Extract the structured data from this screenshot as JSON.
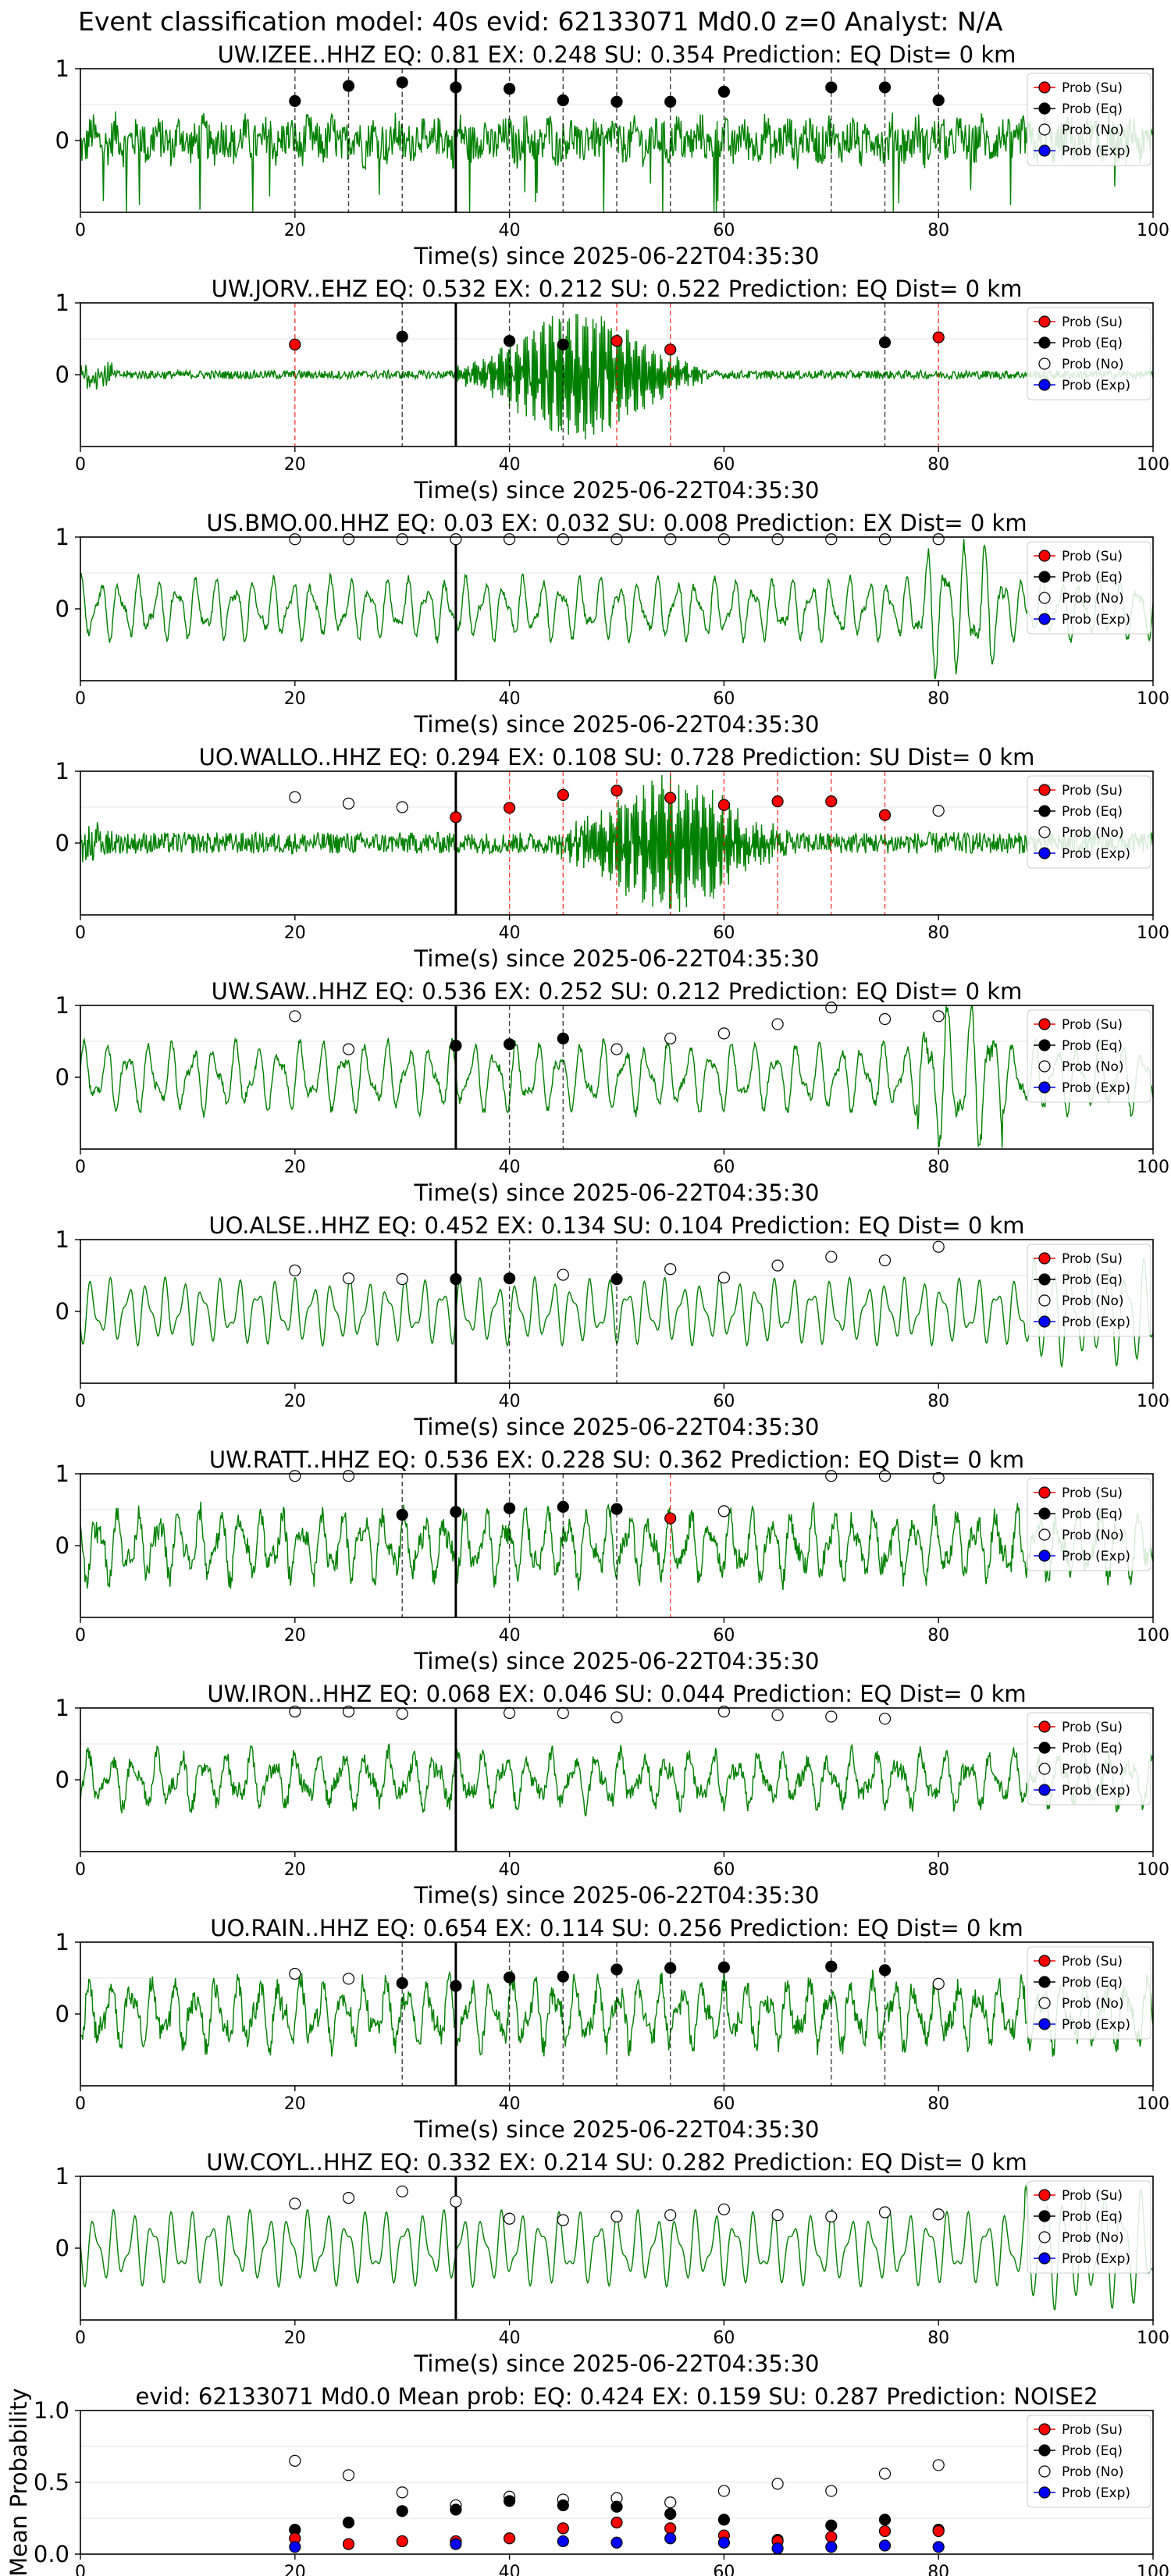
{
  "figure": {
    "suptitle": "Event classification model: 40s evid: 62133071 Md0.0 z=0 Analyst: N/A"
  },
  "style": {
    "waveform": "#008000",
    "prob_su": "#ff0000",
    "prob_eq": "#000000",
    "prob_no": "#ffffff",
    "prob_exp": "#0000ff",
    "pick_line": "#000000"
  },
  "legend": {
    "placement": "top-right",
    "entries": [
      "Prob (Su)",
      "Prob (Eq)",
      "Prob (No)",
      "Prob (Exp)"
    ]
  },
  "chart_data": [
    {
      "type": "line",
      "title": "UW.IZEE..HHZ   EQ: 0.81  EX: 0.248  SU: 0.354   Prediction: EQ    Dist= 0 km",
      "xlabel": "Time(s) since 2025-06-22T04:35:30",
      "xlim": [
        0,
        100
      ],
      "ylim": [
        -1,
        1
      ],
      "xticks": [
        0,
        20,
        40,
        60,
        80,
        100
      ],
      "yticks": [
        0,
        1
      ],
      "pick_time": 35,
      "waveform": {
        "style": "noisy",
        "amplitude": 0.35,
        "burst_start": null,
        "burst_end": null
      },
      "windows": [
        {
          "t": 20,
          "class": "EQ",
          "p": 0.55
        },
        {
          "t": 25,
          "class": "EQ",
          "p": 0.76
        },
        {
          "t": 30,
          "class": "EQ",
          "p": 0.81
        },
        {
          "t": 35,
          "class": "EQ",
          "p": 0.74
        },
        {
          "t": 40,
          "class": "EQ",
          "p": 0.72
        },
        {
          "t": 45,
          "class": "EQ",
          "p": 0.56
        },
        {
          "t": 50,
          "class": "EQ",
          "p": 0.54
        },
        {
          "t": 55,
          "class": "EQ",
          "p": 0.54
        },
        {
          "t": 60,
          "class": "EQ",
          "p": 0.68
        },
        {
          "t": 70,
          "class": "EQ",
          "p": 0.74
        },
        {
          "t": 75,
          "class": "EQ",
          "p": 0.74
        },
        {
          "t": 80,
          "class": "EQ",
          "p": 0.56
        }
      ]
    },
    {
      "type": "line",
      "title": "UW.JORV..EHZ   EQ: 0.532  EX: 0.212  SU: 0.522   Prediction: EQ    Dist= 0 km",
      "xlabel": "Time(s) since 2025-06-22T04:35:30",
      "xlim": [
        0,
        100
      ],
      "ylim": [
        -1,
        1
      ],
      "xticks": [
        0,
        20,
        40,
        60,
        80,
        100
      ],
      "yticks": [
        0,
        1
      ],
      "pick_time": 35,
      "waveform": {
        "style": "burst",
        "amplitude": 0.08,
        "burst_start": 35,
        "burst_end": 58
      },
      "windows": [
        {
          "t": 20,
          "class": "SU",
          "p": 0.42
        },
        {
          "t": 30,
          "class": "EQ",
          "p": 0.53
        },
        {
          "t": 40,
          "class": "EQ",
          "p": 0.47
        },
        {
          "t": 45,
          "class": "EQ",
          "p": 0.42
        },
        {
          "t": 50,
          "class": "SU",
          "p": 0.47
        },
        {
          "t": 55,
          "class": "SU",
          "p": 0.35
        },
        {
          "t": 75,
          "class": "EQ",
          "p": 0.45
        },
        {
          "t": 80,
          "class": "SU",
          "p": 0.52
        }
      ]
    },
    {
      "type": "line",
      "title": "US.BMO.00.HHZ   EQ: 0.03  EX: 0.032  SU: 0.008   Prediction: EX    Dist= 0 km",
      "xlabel": "Time(s) since 2025-06-22T04:35:30",
      "xlim": [
        0,
        100
      ],
      "ylim": [
        -1,
        1
      ],
      "xticks": [
        0,
        20,
        40,
        60,
        80,
        100
      ],
      "yticks": [
        0,
        1
      ],
      "pick_time": 35,
      "waveform": {
        "style": "smooth",
        "amplitude": 0.4,
        "burst_start": null,
        "burst_end": null
      },
      "windows": [
        {
          "t": 20,
          "class": "NO",
          "p": 0.97
        },
        {
          "t": 25,
          "class": "NO",
          "p": 0.97
        },
        {
          "t": 30,
          "class": "NO",
          "p": 0.97
        },
        {
          "t": 35,
          "class": "NO",
          "p": 0.97
        },
        {
          "t": 40,
          "class": "NO",
          "p": 0.97
        },
        {
          "t": 45,
          "class": "NO",
          "p": 0.97
        },
        {
          "t": 50,
          "class": "NO",
          "p": 0.97
        },
        {
          "t": 55,
          "class": "NO",
          "p": 0.97
        },
        {
          "t": 60,
          "class": "NO",
          "p": 0.97
        },
        {
          "t": 65,
          "class": "NO",
          "p": 0.97
        },
        {
          "t": 70,
          "class": "NO",
          "p": 0.97
        },
        {
          "t": 75,
          "class": "NO",
          "p": 0.97
        },
        {
          "t": 80,
          "class": "NO",
          "p": 0.97
        }
      ]
    },
    {
      "type": "line",
      "title": "UO.WALLO..HHZ   EQ: 0.294  EX: 0.108  SU: 0.728   Prediction: SU    Dist= 0 km",
      "xlabel": "Time(s) since 2025-06-22T04:35:30",
      "xlim": [
        0,
        100
      ],
      "ylim": [
        -1,
        1
      ],
      "xticks": [
        0,
        20,
        40,
        60,
        80,
        100
      ],
      "yticks": [
        0,
        1
      ],
      "pick_time": 35,
      "waveform": {
        "style": "burst",
        "amplitude": 0.2,
        "burst_start": 44,
        "burst_end": 66
      },
      "windows": [
        {
          "t": 20,
          "class": "NO",
          "p": 0.64
        },
        {
          "t": 25,
          "class": "NO",
          "p": 0.55
        },
        {
          "t": 30,
          "class": "NO",
          "p": 0.5
        },
        {
          "t": 35,
          "class": "SU",
          "p": 0.36
        },
        {
          "t": 40,
          "class": "SU",
          "p": 0.49
        },
        {
          "t": 45,
          "class": "SU",
          "p": 0.67
        },
        {
          "t": 50,
          "class": "SU",
          "p": 0.73
        },
        {
          "t": 55,
          "class": "SU",
          "p": 0.63
        },
        {
          "t": 60,
          "class": "SU",
          "p": 0.53
        },
        {
          "t": 65,
          "class": "SU",
          "p": 0.58
        },
        {
          "t": 70,
          "class": "SU",
          "p": 0.58
        },
        {
          "t": 75,
          "class": "SU",
          "p": 0.39
        },
        {
          "t": 80,
          "class": "NO",
          "p": 0.45
        }
      ]
    },
    {
      "type": "line",
      "title": "UW.SAW..HHZ   EQ: 0.536  EX: 0.252  SU: 0.212   Prediction: EQ    Dist= 0 km",
      "xlabel": "Time(s) since 2025-06-22T04:35:30",
      "xlim": [
        0,
        100
      ],
      "ylim": [
        -1,
        1
      ],
      "xticks": [
        0,
        20,
        40,
        60,
        80,
        100
      ],
      "yticks": [
        0,
        1
      ],
      "pick_time": 35,
      "waveform": {
        "style": "smooth",
        "amplitude": 0.45,
        "burst_start": null,
        "burst_end": null
      },
      "windows": [
        {
          "t": 20,
          "class": "NO",
          "p": 0.85
        },
        {
          "t": 25,
          "class": "NO",
          "p": 0.39
        },
        {
          "t": 35,
          "class": "EQ",
          "p": 0.44
        },
        {
          "t": 40,
          "class": "EQ",
          "p": 0.46
        },
        {
          "t": 45,
          "class": "EQ",
          "p": 0.54
        },
        {
          "t": 50,
          "class": "NO",
          "p": 0.39
        },
        {
          "t": 55,
          "class": "NO",
          "p": 0.54
        },
        {
          "t": 60,
          "class": "NO",
          "p": 0.61
        },
        {
          "t": 65,
          "class": "NO",
          "p": 0.74
        },
        {
          "t": 70,
          "class": "NO",
          "p": 0.97
        },
        {
          "t": 75,
          "class": "NO",
          "p": 0.81
        },
        {
          "t": 80,
          "class": "NO",
          "p": 0.85
        }
      ]
    },
    {
      "type": "line",
      "title": "UO.ALSE..HHZ   EQ: 0.452  EX: 0.134  SU: 0.104   Prediction: EQ    Dist= 0 km",
      "xlabel": "Time(s) since 2025-06-22T04:35:30",
      "xlim": [
        0,
        100
      ],
      "ylim": [
        -1,
        1
      ],
      "xticks": [
        0,
        20,
        40,
        60,
        80,
        100
      ],
      "yticks": [
        0,
        1
      ],
      "pick_time": 35,
      "waveform": {
        "style": "clean",
        "amplitude": 0.4,
        "burst_start": null,
        "burst_end": null
      },
      "windows": [
        {
          "t": 20,
          "class": "NO",
          "p": 0.57
        },
        {
          "t": 25,
          "class": "NO",
          "p": 0.46
        },
        {
          "t": 30,
          "class": "NO",
          "p": 0.45
        },
        {
          "t": 35,
          "class": "EQ",
          "p": 0.45
        },
        {
          "t": 40,
          "class": "EQ",
          "p": 0.46
        },
        {
          "t": 45,
          "class": "NO",
          "p": 0.51
        },
        {
          "t": 50,
          "class": "EQ",
          "p": 0.45
        },
        {
          "t": 55,
          "class": "NO",
          "p": 0.59
        },
        {
          "t": 60,
          "class": "NO",
          "p": 0.47
        },
        {
          "t": 65,
          "class": "NO",
          "p": 0.64
        },
        {
          "t": 70,
          "class": "NO",
          "p": 0.76
        },
        {
          "t": 75,
          "class": "NO",
          "p": 0.71
        },
        {
          "t": 80,
          "class": "NO",
          "p": 0.9
        }
      ]
    },
    {
      "type": "line",
      "title": "UW.RATT..HHZ   EQ: 0.536  EX: 0.228  SU: 0.362   Prediction: EQ    Dist= 0 km",
      "xlabel": "Time(s) since 2025-06-22T04:35:30",
      "xlim": [
        0,
        100
      ],
      "ylim": [
        -1,
        1
      ],
      "xticks": [
        0,
        20,
        40,
        60,
        80,
        100
      ],
      "yticks": [
        0,
        1
      ],
      "pick_time": 35,
      "waveform": {
        "style": "noisy-smooth",
        "amplitude": 0.5,
        "burst_start": null,
        "burst_end": null
      },
      "windows": [
        {
          "t": 20,
          "class": "NO",
          "p": 0.97
        },
        {
          "t": 25,
          "class": "NO",
          "p": 0.97
        },
        {
          "t": 30,
          "class": "EQ",
          "p": 0.43
        },
        {
          "t": 35,
          "class": "EQ",
          "p": 0.47
        },
        {
          "t": 40,
          "class": "EQ",
          "p": 0.52
        },
        {
          "t": 45,
          "class": "EQ",
          "p": 0.54
        },
        {
          "t": 50,
          "class": "EQ",
          "p": 0.51
        },
        {
          "t": 55,
          "class": "SU",
          "p": 0.38
        },
        {
          "t": 60,
          "class": "NO",
          "p": 0.48
        },
        {
          "t": 70,
          "class": "NO",
          "p": 0.97
        },
        {
          "t": 75,
          "class": "NO",
          "p": 0.97
        },
        {
          "t": 80,
          "class": "NO",
          "p": 0.94
        }
      ]
    },
    {
      "type": "line",
      "title": "UW.IRON..HHZ   EQ: 0.068  EX: 0.046  SU: 0.044   Prediction: EQ    Dist= 0 km",
      "xlabel": "Time(s) since 2025-06-22T04:35:30",
      "xlim": [
        0,
        100
      ],
      "ylim": [
        -1,
        1
      ],
      "xticks": [
        0,
        20,
        40,
        60,
        80,
        100
      ],
      "yticks": [
        0,
        1
      ],
      "pick_time": 35,
      "waveform": {
        "style": "noisy-smooth",
        "amplitude": 0.4,
        "burst_start": null,
        "burst_end": null
      },
      "windows": [
        {
          "t": 20,
          "class": "NO",
          "p": 0.95
        },
        {
          "t": 25,
          "class": "NO",
          "p": 0.95
        },
        {
          "t": 30,
          "class": "NO",
          "p": 0.92
        },
        {
          "t": 40,
          "class": "NO",
          "p": 0.93
        },
        {
          "t": 45,
          "class": "NO",
          "p": 0.93
        },
        {
          "t": 50,
          "class": "NO",
          "p": 0.87
        },
        {
          "t": 60,
          "class": "NO",
          "p": 0.95
        },
        {
          "t": 65,
          "class": "NO",
          "p": 0.9
        },
        {
          "t": 70,
          "class": "NO",
          "p": 0.88
        },
        {
          "t": 75,
          "class": "NO",
          "p": 0.85
        }
      ]
    },
    {
      "type": "line",
      "title": "UO.RAIN..HHZ   EQ: 0.654  EX: 0.114  SU: 0.256   Prediction: EQ    Dist= 0 km",
      "xlabel": "Time(s) since 2025-06-22T04:35:30",
      "xlim": [
        0,
        100
      ],
      "ylim": [
        -1,
        1
      ],
      "xticks": [
        0,
        20,
        40,
        60,
        80,
        100
      ],
      "yticks": [
        0,
        1
      ],
      "pick_time": 35,
      "waveform": {
        "style": "noisy-smooth",
        "amplitude": 0.5,
        "burst_start": null,
        "burst_end": null
      },
      "windows": [
        {
          "t": 20,
          "class": "NO",
          "p": 0.56
        },
        {
          "t": 25,
          "class": "NO",
          "p": 0.49
        },
        {
          "t": 30,
          "class": "EQ",
          "p": 0.43
        },
        {
          "t": 35,
          "class": "EQ",
          "p": 0.39
        },
        {
          "t": 40,
          "class": "EQ",
          "p": 0.51
        },
        {
          "t": 45,
          "class": "EQ",
          "p": 0.52
        },
        {
          "t": 50,
          "class": "EQ",
          "p": 0.62
        },
        {
          "t": 55,
          "class": "EQ",
          "p": 0.64
        },
        {
          "t": 60,
          "class": "EQ",
          "p": 0.65
        },
        {
          "t": 70,
          "class": "EQ",
          "p": 0.66
        },
        {
          "t": 75,
          "class": "EQ",
          "p": 0.61
        },
        {
          "t": 80,
          "class": "NO",
          "p": 0.42
        }
      ]
    },
    {
      "type": "line",
      "title": "UW.COYL..HHZ   EQ: 0.332  EX: 0.214  SU: 0.282   Prediction: EQ    Dist= 0 km",
      "xlabel": "Time(s) since 2025-06-22T04:35:30",
      "xlim": [
        0,
        100
      ],
      "ylim": [
        -1,
        1
      ],
      "xticks": [
        0,
        20,
        40,
        60,
        80,
        100
      ],
      "yticks": [
        0,
        1
      ],
      "pick_time": 35,
      "waveform": {
        "style": "clean",
        "amplitude": 0.45,
        "burst_start": null,
        "burst_end": null
      },
      "windows": [
        {
          "t": 20,
          "class": "NO",
          "p": 0.62
        },
        {
          "t": 25,
          "class": "NO",
          "p": 0.7
        },
        {
          "t": 30,
          "class": "NO",
          "p": 0.79
        },
        {
          "t": 35,
          "class": "NO",
          "p": 0.65
        },
        {
          "t": 40,
          "class": "NO",
          "p": 0.41
        },
        {
          "t": 45,
          "class": "NO",
          "p": 0.39
        },
        {
          "t": 50,
          "class": "NO",
          "p": 0.44
        },
        {
          "t": 55,
          "class": "NO",
          "p": 0.46
        },
        {
          "t": 60,
          "class": "NO",
          "p": 0.54
        },
        {
          "t": 65,
          "class": "NO",
          "p": 0.46
        },
        {
          "t": 70,
          "class": "NO",
          "p": 0.44
        },
        {
          "t": 75,
          "class": "NO",
          "p": 0.5
        },
        {
          "t": 80,
          "class": "NO",
          "p": 0.47
        }
      ]
    },
    {
      "type": "scatter",
      "title": "evid: 62133071  Md0.0   Mean prob:   EQ: 0.424  EX: 0.159  SU: 0.287   Prediction: NOISE2",
      "ylabel": "Mean Probability",
      "xlim": [
        0,
        100
      ],
      "ylim": [
        0,
        1
      ],
      "xticks": [
        0,
        20,
        40,
        60,
        80,
        100
      ],
      "yticks": [
        0.0,
        0.5,
        1.0
      ],
      "ytick_labels": [
        "0.0",
        "0.5",
        "1.0"
      ],
      "x": [
        20,
        25,
        30,
        35,
        40,
        45,
        50,
        55,
        60,
        65,
        70,
        75,
        80
      ],
      "series": [
        {
          "name": "Prob (No)",
          "values": [
            0.65,
            0.55,
            0.43,
            0.34,
            0.4,
            0.38,
            0.39,
            0.36,
            0.44,
            0.49,
            0.44,
            0.56,
            0.62
          ]
        },
        {
          "name": "Prob (Eq)",
          "values": [
            0.17,
            0.22,
            0.3,
            0.31,
            0.37,
            0.34,
            0.33,
            0.28,
            0.24,
            0.1,
            0.2,
            0.24,
            0.17
          ]
        },
        {
          "name": "Prob (Su)",
          "values": [
            0.11,
            0.07,
            0.09,
            0.09,
            0.11,
            0.18,
            0.22,
            0.18,
            0.13,
            0.09,
            0.12,
            0.16,
            0.16
          ]
        },
        {
          "name": "Prob (Exp)",
          "values": [
            0.05,
            0.0,
            0.0,
            0.07,
            0.0,
            0.09,
            0.08,
            0.11,
            0.08,
            0.04,
            0.05,
            0.06,
            0.05
          ]
        }
      ]
    }
  ]
}
